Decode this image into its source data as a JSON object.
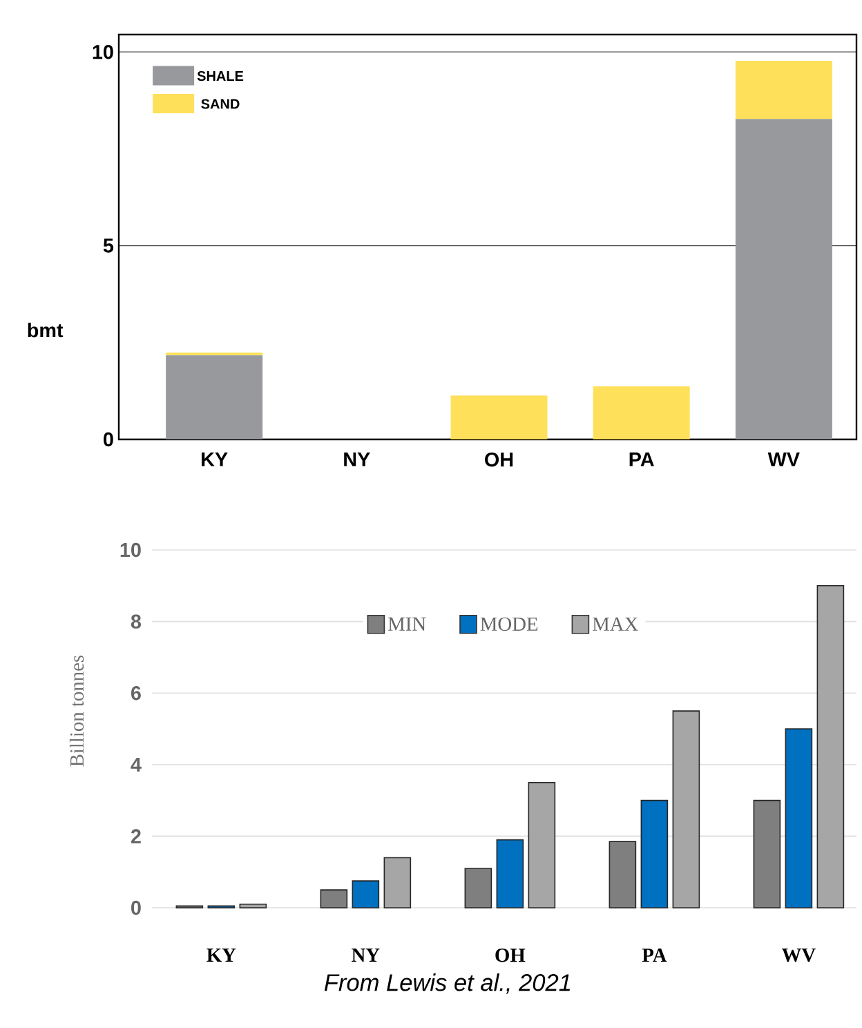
{
  "chart_data": [
    {
      "type": "bar",
      "stacked": true,
      "ylabel": "bmt",
      "categories": [
        "KY",
        "NY",
        "OH",
        "PA",
        "WV"
      ],
      "series": [
        {
          "name": "SHALE",
          "color": "#98999d",
          "values": [
            2.17,
            0,
            0,
            0,
            8.27
          ]
        },
        {
          "name": "SAND",
          "color": "#fee05a",
          "values": [
            0.07,
            0,
            1.13,
            1.37,
            1.5
          ]
        }
      ],
      "ylim": [
        0,
        10.45
      ],
      "yticks": [
        0,
        5,
        10
      ],
      "grid": "y",
      "legend": "top left"
    },
    {
      "type": "bar",
      "ylabel": "Billion tonnes",
      "categories": [
        "KY",
        "NY",
        "OH",
        "PA",
        "WV"
      ],
      "series": [
        {
          "name": "MIN",
          "color": "#7f7f7f",
          "values": [
            0.05,
            0.5,
            1.1,
            1.85,
            3
          ]
        },
        {
          "name": "MODE",
          "color": "#0070c0",
          "values": [
            0.05,
            0.75,
            1.9,
            3,
            5
          ]
        },
        {
          "name": "MAX",
          "color": "#a6a6a6",
          "values": [
            0.1,
            1.4,
            3.5,
            5.5,
            9
          ]
        }
      ],
      "ylim": [
        0,
        10
      ],
      "yticks": [
        0,
        2,
        4,
        6,
        8,
        10
      ],
      "grid": "y",
      "legend": "top",
      "annotations": [
        "From Lewis et al., 2021"
      ]
    }
  ]
}
